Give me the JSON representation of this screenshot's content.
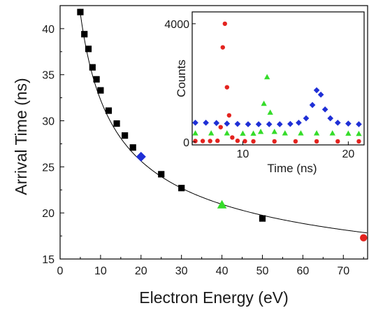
{
  "chart_data": [
    {
      "type": "scatter",
      "title": "",
      "xlabel": "Electron Energy (eV)",
      "ylabel": "Arrival Time (ns)",
      "xlim": [
        0,
        76
      ],
      "ylim": [
        15,
        42.5
      ],
      "xticks": [
        "0",
        "10",
        "20",
        "30",
        "40",
        "50",
        "60",
        "70"
      ],
      "yticks": [
        "15",
        "20",
        "25",
        "30",
        "35",
        "40"
      ],
      "series": [
        {
          "marker": "square",
          "color": "#000000",
          "points": [
            [
              5,
              41.8
            ],
            [
              6,
              39.4
            ],
            [
              7,
              37.8
            ],
            [
              8,
              35.8
            ],
            [
              9,
              34.5
            ],
            [
              10,
              33.3
            ],
            [
              12,
              31.1
            ],
            [
              14,
              29.7
            ],
            [
              16,
              28.4
            ],
            [
              18,
              27.1
            ],
            [
              25,
              24.2
            ],
            [
              30,
              22.7
            ],
            [
              50,
              19.4
            ]
          ]
        },
        {
          "marker": "diamond",
          "color": "#1f2fd6",
          "points": [
            [
              20,
              26.1
            ]
          ]
        },
        {
          "marker": "triangle",
          "color": "#35dc2a",
          "points": [
            [
              40,
              20.9
            ]
          ]
        },
        {
          "marker": "circle",
          "color": "#e3231f",
          "points": [
            [
              75,
              17.3
            ]
          ]
        }
      ],
      "fit_curve": {
        "form": "t0 + k / sqrt(E)",
        "t0": 9.6,
        "k": 71.7,
        "color": "#000000"
      }
    },
    {
      "type": "scatter",
      "title": "",
      "xlabel": "Time (ns)",
      "ylabel": "Counts",
      "xlim": [
        5.2,
        21.5
      ],
      "ylim": [
        -100,
        4400
      ],
      "xticks": [
        "10",
        "20"
      ],
      "yticks": [
        "0",
        "4000"
      ],
      "series": [
        {
          "marker": "circle",
          "color": "#e3231f",
          "points": [
            [
              5.5,
              30
            ],
            [
              6.2,
              30
            ],
            [
              6.9,
              30
            ],
            [
              7.6,
              40
            ],
            [
              7.9,
              500
            ],
            [
              8.1,
              3200
            ],
            [
              8.3,
              4000
            ],
            [
              8.5,
              1850
            ],
            [
              8.7,
              900
            ],
            [
              9.0,
              150
            ],
            [
              9.5,
              40
            ],
            [
              10.2,
              25
            ],
            [
              11,
              20
            ],
            [
              13,
              20
            ],
            [
              15,
              20
            ],
            [
              17,
              20
            ],
            [
              19,
              20
            ],
            [
              21,
              20
            ]
          ]
        },
        {
          "marker": "triangle",
          "color": "#35dc2a",
          "points": [
            [
              5.5,
              300
            ],
            [
              7.0,
              300
            ],
            [
              8.5,
              300
            ],
            [
              10.0,
              290
            ],
            [
              11.0,
              290
            ],
            [
              11.7,
              350
            ],
            [
              12.0,
              1300
            ],
            [
              12.3,
              2200
            ],
            [
              12.6,
              1000
            ],
            [
              13.0,
              350
            ],
            [
              14.0,
              300
            ],
            [
              15.5,
              300
            ],
            [
              17.0,
              300
            ],
            [
              18.5,
              300
            ],
            [
              20.0,
              290
            ],
            [
              21.0,
              280
            ]
          ]
        },
        {
          "marker": "diamond",
          "color": "#1f2fd6",
          "points": [
            [
              5.5,
              650
            ],
            [
              6.5,
              650
            ],
            [
              7.5,
              640
            ],
            [
              8.5,
              620
            ],
            [
              9.5,
              610
            ],
            [
              10.5,
              600
            ],
            [
              11.5,
              600
            ],
            [
              12.5,
              600
            ],
            [
              13.5,
              600
            ],
            [
              14.5,
              610
            ],
            [
              15.3,
              650
            ],
            [
              16.0,
              800
            ],
            [
              16.6,
              1250
            ],
            [
              17.0,
              1750
            ],
            [
              17.4,
              1600
            ],
            [
              17.8,
              1100
            ],
            [
              18.3,
              800
            ],
            [
              19.0,
              650
            ],
            [
              20.0,
              620
            ],
            [
              21.0,
              600
            ]
          ]
        }
      ]
    }
  ]
}
